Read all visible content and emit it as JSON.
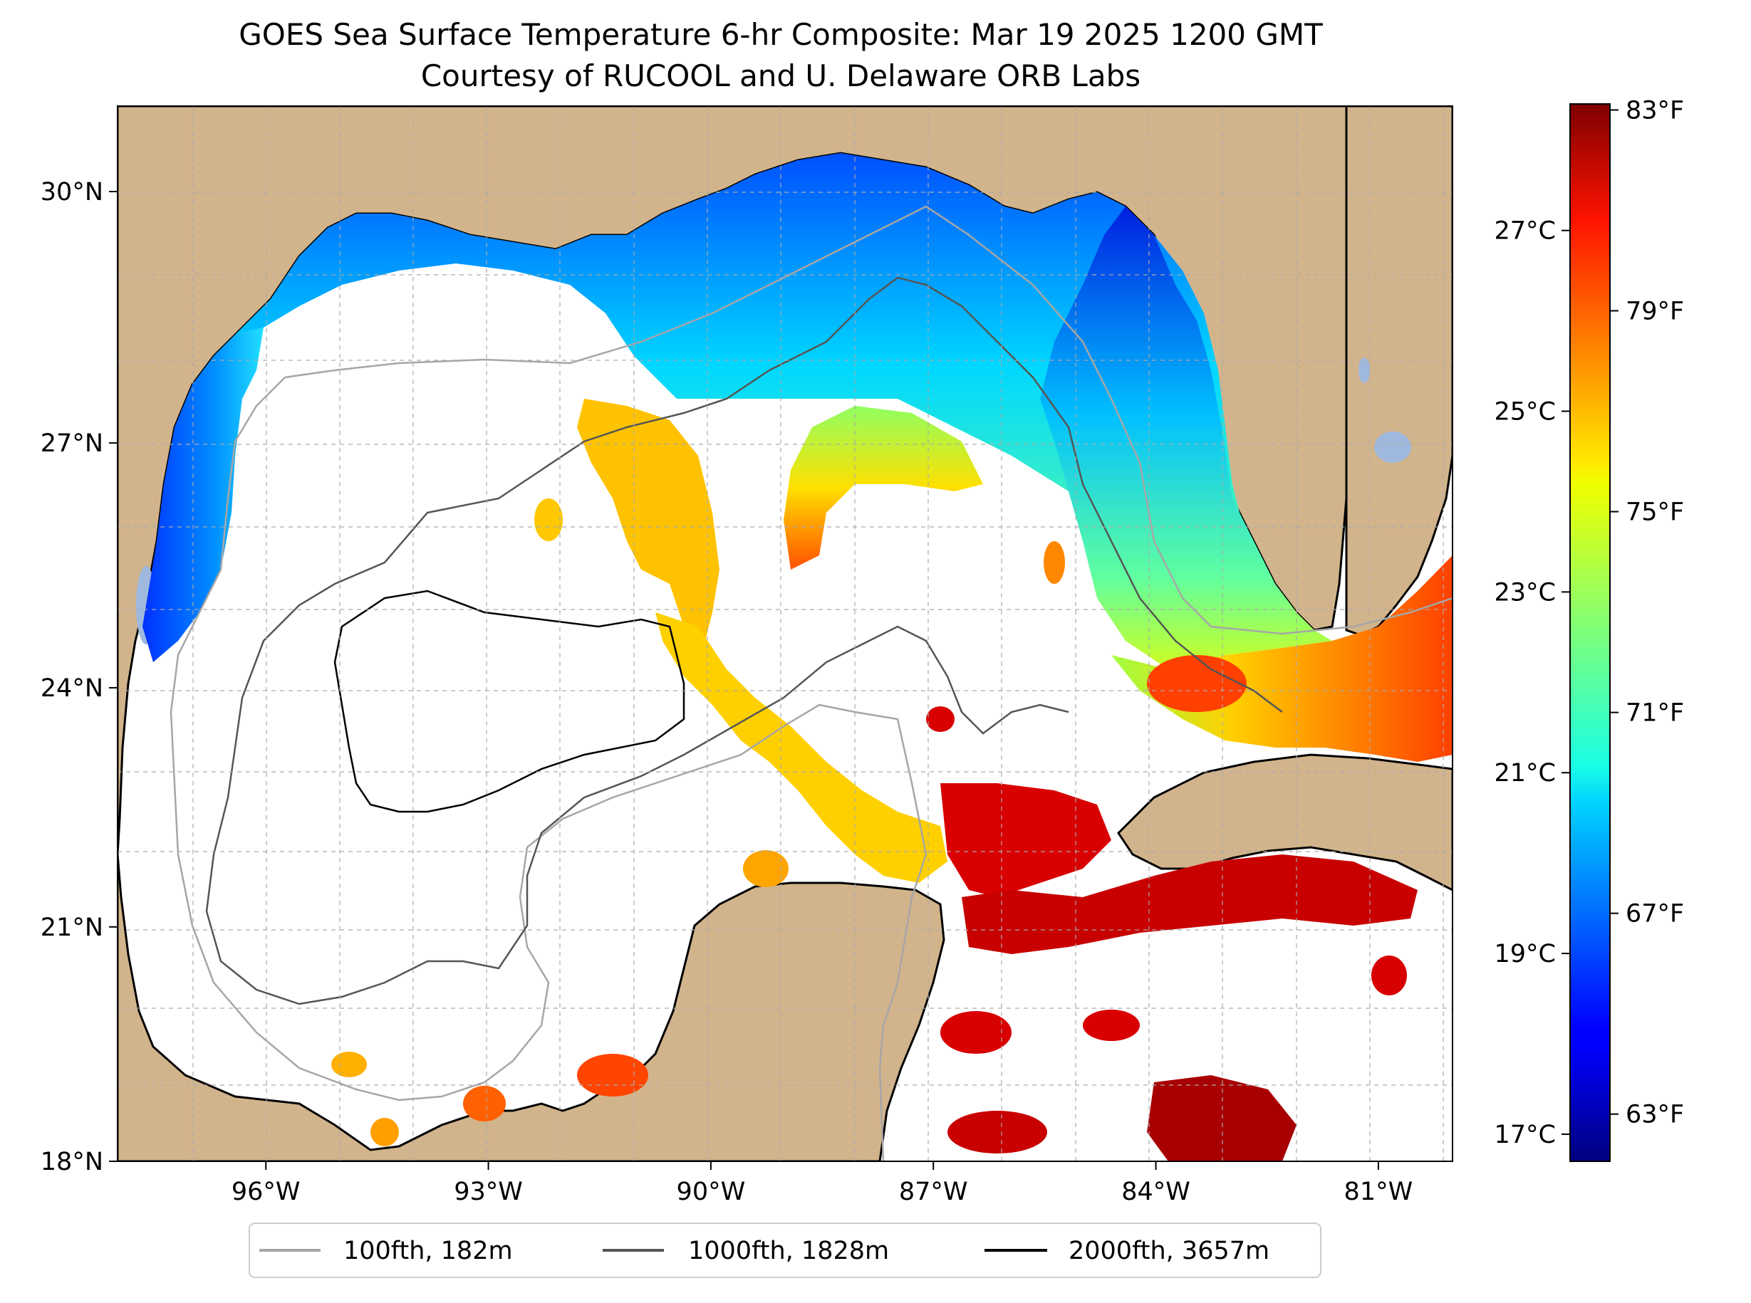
{
  "title": {
    "line1": "GOES Sea Surface Temperature 6-hr Composite: Mar 19 2025 1200 GMT",
    "line2": "Courtesy of RUCOOL and U. Delaware ORB Labs"
  },
  "map": {
    "lon_range": [
      -98.0,
      -80.0
    ],
    "lat_range": [
      18.0,
      31.0
    ],
    "lon_ticks": [
      {
        "value": -96,
        "label": "96°W"
      },
      {
        "value": -93,
        "label": "93°W"
      },
      {
        "value": -90,
        "label": "90°W"
      },
      {
        "value": -87,
        "label": "87°W"
      },
      {
        "value": -84,
        "label": "84°W"
      },
      {
        "value": -81,
        "label": "81°W"
      }
    ],
    "lat_ticks": [
      {
        "value": 30,
        "label": "30°N"
      },
      {
        "value": 27,
        "label": "27°N"
      },
      {
        "value": 24,
        "label": "24°N"
      },
      {
        "value": 21,
        "label": "21°N"
      },
      {
        "value": 18,
        "label": "18°N"
      }
    ],
    "land_color": "#d2b48c",
    "water_color": "#ffffff",
    "inland_water_color": "#9fb8de",
    "grid": "dashed",
    "variable": "sea surface temperature"
  },
  "colorbar": {
    "colormap": "jet",
    "range_c": [
      16.7,
      28.4
    ],
    "celsius_ticks": [
      {
        "value": 27,
        "label": "27°C"
      },
      {
        "value": 25,
        "label": "25°C"
      },
      {
        "value": 23,
        "label": "23°C"
      },
      {
        "value": 21,
        "label": "21°C"
      },
      {
        "value": 19,
        "label": "19°C"
      },
      {
        "value": 17,
        "label": "17°C"
      }
    ],
    "fahrenheit_ticks": [
      {
        "value": 83,
        "label": "83°F"
      },
      {
        "value": 79,
        "label": "79°F"
      },
      {
        "value": 75,
        "label": "75°F"
      },
      {
        "value": 71,
        "label": "71°F"
      },
      {
        "value": 67,
        "label": "67°F"
      },
      {
        "value": 63,
        "label": "63°F"
      }
    ]
  },
  "legend": {
    "items": [
      {
        "label": "100fth, 182m",
        "color": "#a6a6a6"
      },
      {
        "label": "1000fth, 1828m",
        "color": "#555555"
      },
      {
        "label": "2000fth, 3657m",
        "color": "#000000"
      }
    ]
  }
}
